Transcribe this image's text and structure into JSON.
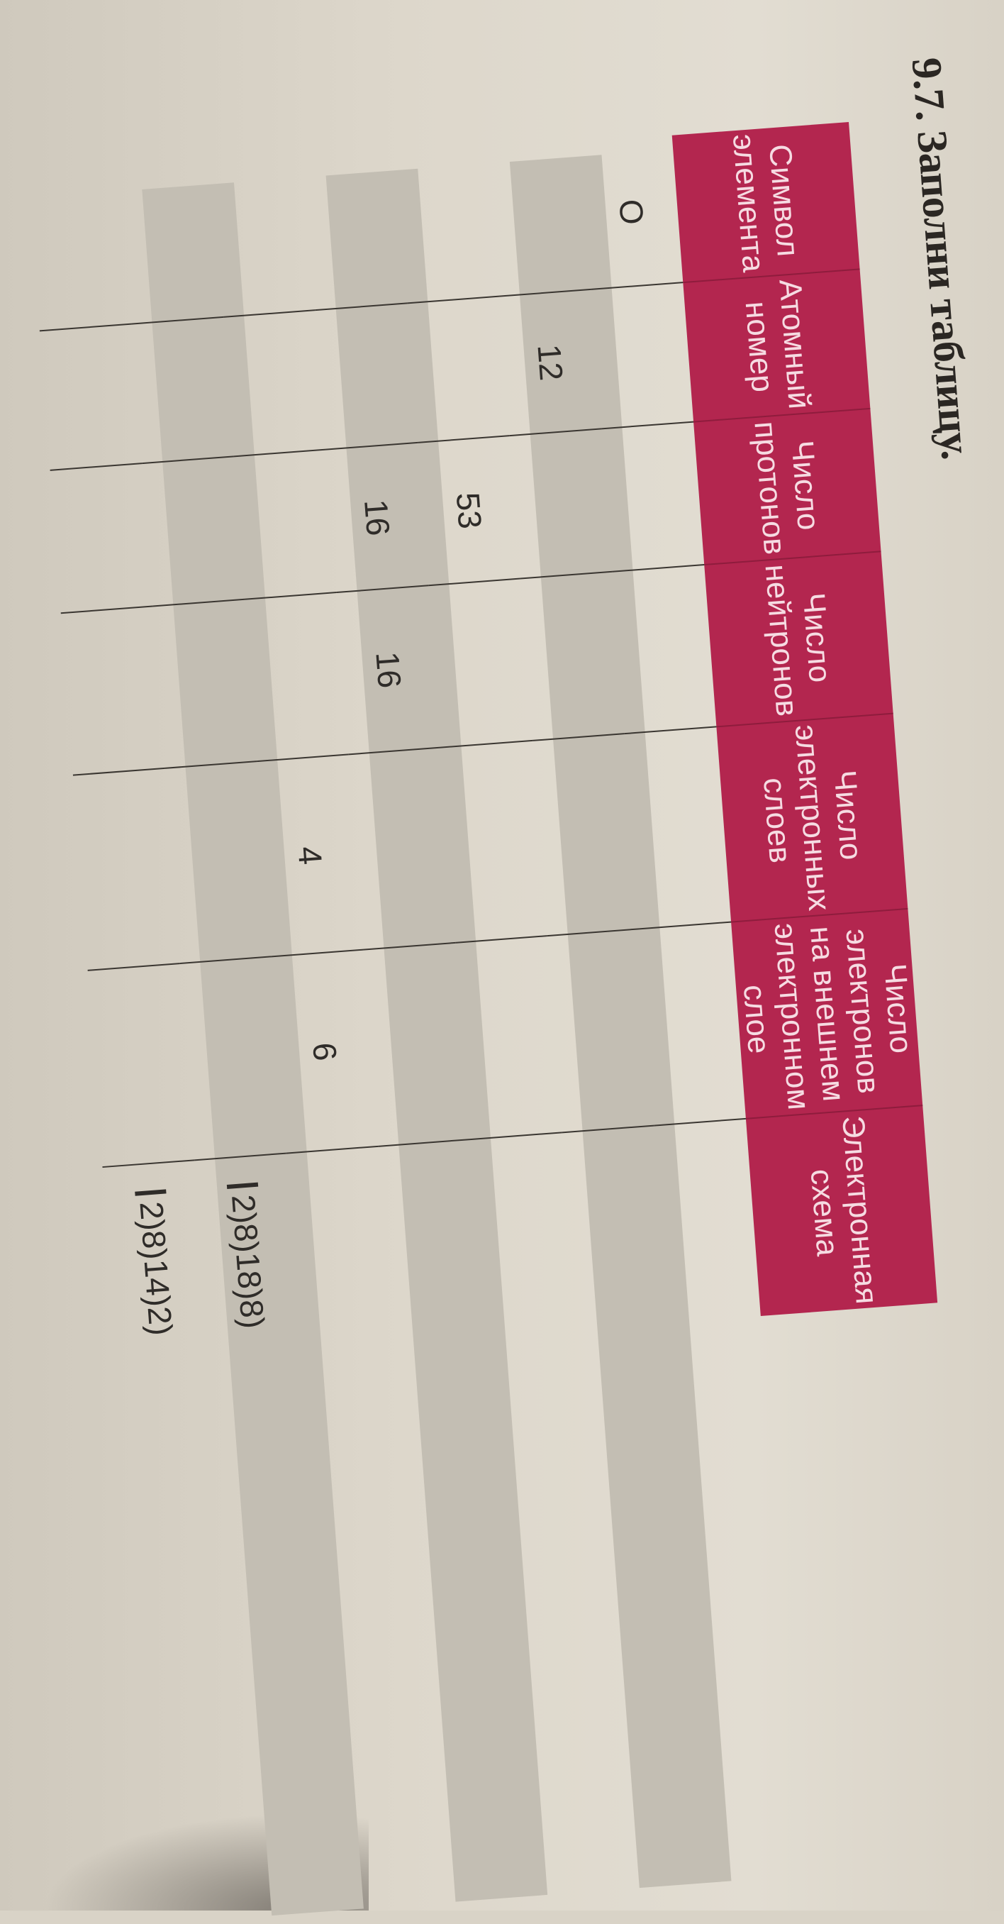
{
  "title": "9.7. Заполни таблицу.",
  "colors": {
    "header_background": "#b3264f",
    "header_text": "#f6dbe2",
    "stripe_grey": "#c3beb3",
    "paper": "#ddd7cb"
  },
  "table": {
    "headers": [
      "Символ\nэлемента",
      "Атомный\nномер",
      "Число\nпротонов",
      "Число\nнейтронов",
      "Число\nэлектронных\nслоев",
      "Число электронов\nна внешнем\nэлектронном слое",
      "Электронная\nсхема"
    ],
    "rows": [
      [
        "O",
        "",
        "",
        "",
        "",
        "",
        ""
      ],
      [
        "",
        "12",
        "",
        "",
        "",
        "",
        ""
      ],
      [
        "",
        "",
        "53",
        "",
        "",
        "",
        ""
      ],
      [
        "",
        "",
        "16",
        "16",
        "",
        "",
        ""
      ],
      [
        "",
        "",
        "",
        "",
        "4",
        "6",
        ""
      ],
      [
        "",
        "",
        "",
        "",
        "",
        "",
        "2)8)18)8)"
      ],
      [
        "",
        "",
        "",
        "",
        "",
        "",
        "2)8)14)2)"
      ]
    ]
  }
}
